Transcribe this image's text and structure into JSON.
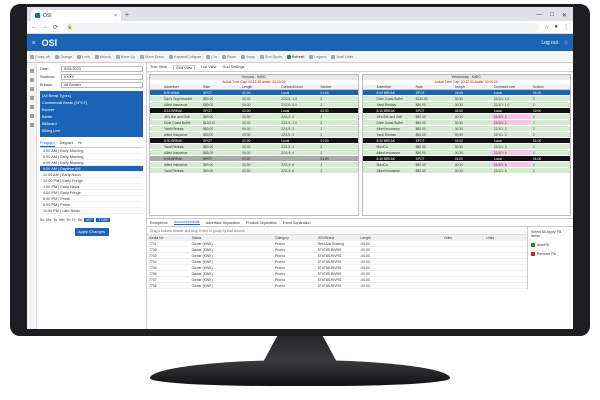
{
  "browser": {
    "tab_title": "OSI",
    "tab_close": "×",
    "new_tab": "+",
    "window_controls": [
      "—",
      "□",
      "✕"
    ],
    "address": "",
    "nav": [
      "←",
      "→",
      "⟳"
    ]
  },
  "app": {
    "logo": "OSI",
    "logout": "Log out",
    "colors": {
      "brand": "#1b63b6",
      "accent_green": "#2e8b3a",
      "row_green": "#d6ecd2",
      "highlight_pink": "#f6c8e3"
    }
  },
  "toolbar": {
    "items": [
      "Cross-off",
      "Change",
      "Lock",
      "Unlock",
      "Move Up",
      "Move Down",
      "Expand/Collapse",
      "Cut",
      "Paste",
      "Swap",
      "Sort Spots",
      "Refresh",
      "Legend",
      "Avail Units"
    ]
  },
  "filters": {
    "date_label": "Date:",
    "date_value": "9/05/2023",
    "stations_label": "Stations:",
    "stations_value": "KXXX",
    "breaks_label": "Breaks:",
    "breaks_value": "All Breaks"
  },
  "break_types": [
    "(All Break Types)",
    "Commercial Break (SPOT)",
    "Banner",
    "Barter",
    "Billboard",
    "Billing Line"
  ],
  "program_tabs": [
    "Program",
    "Daypart",
    "Hr"
  ],
  "programs": [
    "4:00 AM | Early Morning",
    "5:00 AM | Early Morning",
    "6:00 AM | Early Morning",
    "8:00 AM | Daytime AM",
    "11:00 AM | Early Noon",
    "12:00 PM | Early Fringe",
    "1:00 PM | Early News",
    "4:00 PM | Early Fringe",
    "5:00 PM | Prime",
    "6:00 PM | Prime",
    "11:00 PM | Late News"
  ],
  "selected_program_index": 3,
  "days": [
    "Su",
    "Mo",
    "Tu",
    "We",
    "Th",
    "Fr",
    "Sa"
  ],
  "day_buttons": [
    "M-F",
    "7 DAY"
  ],
  "apply_button": "Apply Changes",
  "view_tabs": [
    "Tree View",
    "Grid View",
    "List View",
    "Grid Settings"
  ],
  "left_grid": {
    "title": "Tuesday - KABC",
    "subtitle": "Actual Time Cap: 00:12:30  Avails: 00:00:00",
    "columns": [
      "",
      "Advertiser",
      "Rate",
      "Length",
      "Contract/Level",
      "Section"
    ]
  },
  "right_grid": {
    "title": "Wednesday - KABC",
    "subtitle": "Actual Time Cap: 00:12:30  Avails: 00:00:00",
    "columns": [
      "",
      "Advertiser",
      "Rate",
      "Length",
      "Contract/Level",
      "Section"
    ]
  },
  "left_rows": [
    {
      "kind": "brk sel",
      "cells": [
        "",
        "8:00 AVAIL",
        "SPOT",
        "01:00",
        "Local",
        "01:00"
      ]
    },
    {
      "kind": "",
      "cells": [
        "",
        "Dan's Supermarket",
        "$90.00",
        "00:30",
        "22/2/1: 1.0",
        "2"
      ]
    },
    {
      "kind": "",
      "cells": [
        "",
        "Allied Insurance",
        "$50.00",
        "00:30",
        "22/2/1: 6.0",
        "2"
      ]
    },
    {
      "kind": "brk",
      "cells": [
        "",
        "8:15 BREAK",
        "SPOT",
        "02:00",
        "Local",
        "02:00"
      ]
    },
    {
      "kind": "",
      "cells": [
        "",
        "Jill's Bar and Grill",
        "$50.00",
        "00:30",
        "22/1/1: 0",
        "2"
      ]
    },
    {
      "kind": "",
      "cells": [
        "",
        "Dixie Coast Buffet",
        "$100.00",
        "00:30",
        "22/1/1: 2.0",
        "2"
      ]
    },
    {
      "kind": "",
      "cells": [
        "",
        "Yardi Rentals",
        "$80.00",
        "00:30",
        "22/1/1: 3",
        "2"
      ]
    },
    {
      "kind": "",
      "cells": [
        "",
        "Allied Insurance",
        "$50.00",
        "00:30",
        "22/1/1: 3",
        "2"
      ]
    },
    {
      "kind": "brk",
      "cells": [
        "",
        "8:30 BREAK",
        "SPOT",
        "01:00",
        "Local",
        "01:00"
      ]
    },
    {
      "kind": "",
      "cells": [
        "",
        "Yardi Rentals",
        "$50.00",
        "00:30",
        "22/1/1: 4",
        "2"
      ]
    },
    {
      "kind": "",
      "cells": [
        "",
        "Allied Insurance",
        "$50.00",
        "00:30",
        "22/1/1: 4",
        "2"
      ]
    },
    {
      "kind": "brk grey",
      "cells": [
        "",
        "8:45 BREAK",
        "SPOT",
        "01:00",
        "",
        "01:00"
      ]
    },
    {
      "kind": "",
      "cells": [
        "",
        "Allied Insurance",
        "$50.00",
        "00:30",
        "22/1/1: 6",
        "2"
      ]
    },
    {
      "kind": "",
      "cells": [
        "",
        "Yardi Rentals",
        "$50.00",
        "00:30",
        "22/1/1: 6",
        "2"
      ]
    }
  ],
  "right_rows": [
    {
      "kind": "brk sel",
      "cells": [
        "",
        "8:00 BREAK",
        "SPOT",
        "01:00",
        "Local",
        "01:00"
      ]
    },
    {
      "kind": "",
      "cells": [
        "",
        "Dixie Coast Buffet",
        "$140.00",
        "00:30",
        "22/1/1: 1.0",
        "2"
      ]
    },
    {
      "kind": "",
      "cells": [
        "",
        "Yardi Rentals",
        "$50.00",
        "00:30",
        "22/1/1: 1.0",
        "2"
      ]
    },
    {
      "kind": "brk",
      "cells": [
        "",
        "8:15 BREAK",
        "SPOT",
        "02:00",
        "Local",
        "02:00"
      ]
    },
    {
      "kind": "pink",
      "cells": [
        "",
        "Jill's Bar and Grill",
        "$50.00",
        "00:30",
        "22/1/1: 2",
        "2"
      ]
    },
    {
      "kind": "pink",
      "cells": [
        "",
        "Dixie Coast Buffet",
        "$50.00",
        "00:30",
        "22/1/1: 2",
        "2"
      ]
    },
    {
      "kind": "",
      "cells": [
        "",
        "Allied Insurance",
        "$80.00",
        "00:30",
        "22/1/1: 3",
        "2"
      ]
    },
    {
      "kind": "",
      "cells": [
        "",
        "Yardi Rentals",
        "$50.00",
        "00:30",
        "22/1/1: 3",
        "2"
      ]
    },
    {
      "kind": "brk",
      "cells": [
        "",
        "8:30 BREAK",
        "SPOT",
        "01:00",
        "Local",
        "01:00"
      ]
    },
    {
      "kind": "",
      "cells": [
        "",
        "MaxiCo",
        "$80.00",
        "00:30",
        "22/1/1: 4",
        "2"
      ]
    },
    {
      "kind": "pink",
      "cells": [
        "",
        "Allied Insurance",
        "$50.00",
        "00:30",
        "22/1/1: 4",
        "2"
      ]
    },
    {
      "kind": "brk",
      "cells": [
        "",
        "8:45 BREAK",
        "SPOT",
        "01:00",
        "Local",
        "01:00"
      ]
    },
    {
      "kind": "pink",
      "cells": [
        "",
        "MaxiCo",
        "$50.00",
        "00:30",
        "22/1/1: 6",
        "2"
      ]
    },
    {
      "kind": "",
      "cells": [
        "",
        "Allied Insurance",
        "$50.00",
        "00:30",
        "22/1/1: 6",
        "2"
      ]
    }
  ],
  "bottom_tabs": [
    "Exceptions",
    "Announcements",
    "Advertiser Separation",
    "Product Separation",
    "Event Separation"
  ],
  "drag_hint": "Drag a column header and drop it here to group by that column",
  "bottom_columns": [
    "Media No",
    "Status",
    "Category",
    "ISCI/Brand",
    "Length",
    "Video",
    "Units"
  ],
  "bottom_rows": [
    [
      "7701",
      "Owner (KWK)",
      "Promo",
      "Rest Anti Sharing",
      ":00:00",
      "",
      ""
    ],
    [
      "7702",
      "Owner (KWK)",
      "Promo",
      "ST#T85-RIVRS",
      ":00:00",
      "",
      ""
    ],
    [
      "7703",
      "Owner (KWK)",
      "Promo",
      "ST#T85-RIVRS",
      ":00:00",
      "",
      ""
    ],
    [
      "7704",
      "Owner (KWK)",
      "Promo",
      "ST#T85-RIVRS",
      ":00:00",
      "",
      ""
    ],
    [
      "7705",
      "Owner (KWK)",
      "Promo",
      "ST#T85-RIVRS",
      ":00:00",
      "",
      ""
    ],
    [
      "7706",
      "Owner (KWK)",
      "Promo",
      "ST#T85-RIVRS",
      ":00:00",
      "",
      ""
    ],
    [
      "7707",
      "Owner (KWK)",
      "Promo",
      "ST#T85-RIVRS",
      ":00:00",
      "",
      ""
    ],
    [
      "7708",
      "Owner (KWK)",
      "Promo",
      "ST#T85-RIVRS",
      ":00:00",
      "",
      ""
    ]
  ],
  "side_actions": {
    "title": "Select All Apply Fill Items",
    "autofill": "AutoFill",
    "remove_fill": "Remove Fill"
  }
}
